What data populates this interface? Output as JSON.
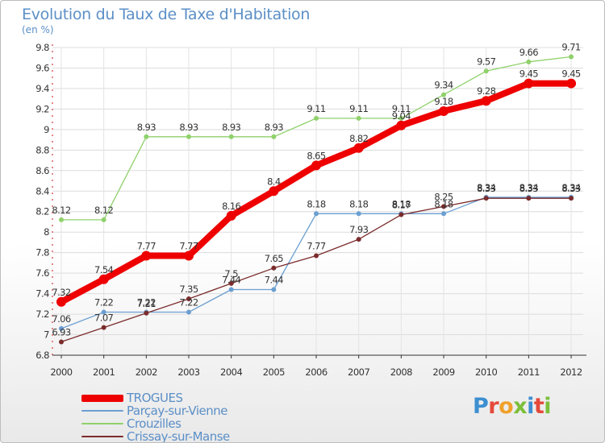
{
  "header": {
    "title": "Evolution du Taux de Taxe d'Habitation",
    "subtitle": "(en %)"
  },
  "logo": {
    "text": "Proxiti",
    "letter_colors": [
      "#3d8fd0",
      "#e5493a",
      "#f0a12b",
      "#7cbf3a",
      "#3d8fd0",
      "#e5493a",
      "#7cbf3a"
    ]
  },
  "chart_data": {
    "type": "line",
    "x": [
      "2000",
      "2001",
      "2002",
      "2003",
      "2004",
      "2005",
      "2006",
      "2007",
      "2008",
      "2009",
      "2010",
      "2011",
      "2012"
    ],
    "ylim": [
      6.8,
      9.8
    ],
    "yticks": [
      "6.8",
      "7",
      "7.2",
      "7.4",
      "7.6",
      "7.8",
      "8",
      "8.2",
      "8.4",
      "8.6",
      "8.8",
      "9",
      "9.2",
      "9.4",
      "9.6",
      "9.8"
    ],
    "grid": true,
    "legend_position": "bottom-left",
    "series": [
      {
        "name": "Crouzilles",
        "color": "#8fd16b",
        "values": [
          8.12,
          8.12,
          8.93,
          8.93,
          8.93,
          8.93,
          9.11,
          9.11,
          9.11,
          9.34,
          9.57,
          9.66,
          9.71
        ],
        "labels": [
          "8.12",
          "8.12",
          "8.93",
          "8.93",
          "8.93",
          "8.93",
          "9.11",
          "9.11",
          "9.11",
          "9.34",
          "9.57",
          "9.66",
          "9.71"
        ]
      },
      {
        "name": "Parçay-sur-Vienne",
        "color": "#6b9fd1",
        "values": [
          7.06,
          7.22,
          7.22,
          7.22,
          7.44,
          7.44,
          8.18,
          8.18,
          8.18,
          8.18,
          8.34,
          8.34,
          8.34
        ],
        "labels": [
          "7.06",
          "7.22",
          "7.22",
          "7.22",
          "7.44",
          "7.44",
          "8.18",
          "8.18",
          "8.18",
          "8.18",
          "8.34",
          "8.34",
          "8.34"
        ]
      },
      {
        "name": "Crissay-sur-Manse",
        "color": "#7b2c2c",
        "values": [
          6.93,
          7.07,
          7.21,
          7.35,
          7.5,
          7.65,
          7.77,
          7.93,
          8.17,
          8.25,
          8.33,
          8.33,
          8.33
        ],
        "labels": [
          "6.93",
          "7.07",
          "7.21",
          "7.35",
          "7.5",
          "7.65",
          "7.77",
          "7.93",
          "8.17",
          "8.25",
          "8.33",
          "8.33",
          "8.33"
        ]
      },
      {
        "name": "TROGUES",
        "color": "#ee0000",
        "values": [
          7.32,
          7.54,
          7.77,
          7.77,
          8.16,
          8.4,
          8.65,
          8.82,
          9.04,
          9.18,
          9.28,
          9.45,
          9.45
        ],
        "labels": [
          "7.32",
          "7.54",
          "7.77",
          "7.77",
          "8.16",
          "8.4",
          "8.65",
          "8.82",
          "9.04",
          "9.18",
          "9.28",
          "9.45",
          "9.45"
        ]
      }
    ],
    "legend_order": [
      "TROGUES",
      "Parçay-sur-Vienne",
      "Crouzilles",
      "Crissay-sur-Manse"
    ]
  }
}
